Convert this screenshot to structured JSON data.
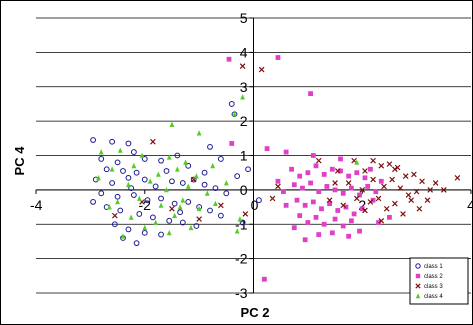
{
  "chart_data": {
    "type": "scatter",
    "xlabel": "PC 2",
    "ylabel": "PC 4",
    "xlim": [
      -4,
      4
    ],
    "ylim": [
      -3,
      5
    ],
    "x_ticks": [
      -4,
      -2,
      0,
      2,
      4
    ],
    "y_ticks": [
      -3,
      -2,
      -1,
      0,
      1,
      2,
      3,
      4,
      5
    ],
    "grid": "horizontal",
    "legend_position": "bottom-right",
    "series": [
      {
        "name": "class 1",
        "marker": "circle-open",
        "color": "#1a1a8c",
        "points": [
          [
            -2.95,
            1.45
          ],
          [
            -2.6,
            1.4
          ],
          [
            -2.3,
            1.35
          ],
          [
            -2.2,
            1.1
          ],
          [
            -2.8,
            0.9
          ],
          [
            -2.5,
            0.8
          ],
          [
            -2.0,
            0.9
          ],
          [
            -1.7,
            0.85
          ],
          [
            -1.4,
            1.0
          ],
          [
            -1.2,
            0.7
          ],
          [
            -0.8,
            1.25
          ],
          [
            -0.6,
            0.9
          ],
          [
            -0.9,
            0.5
          ],
          [
            -0.3,
            0.4
          ],
          [
            -2.7,
            0.6
          ],
          [
            -2.4,
            0.55
          ],
          [
            -2.15,
            0.5
          ],
          [
            -2.9,
            0.3
          ],
          [
            -2.6,
            0.2
          ],
          [
            -2.3,
            0.35
          ],
          [
            -2.0,
            0.3
          ],
          [
            -1.8,
            0.1
          ],
          [
            -1.5,
            0.25
          ],
          [
            -1.3,
            0.2
          ],
          [
            -1.1,
            0.3
          ],
          [
            -0.9,
            0.15
          ],
          [
            -0.7,
            0.05
          ],
          [
            -0.5,
            -0.1
          ],
          [
            -2.8,
            -0.1
          ],
          [
            -2.5,
            -0.2
          ],
          [
            -2.2,
            -0.15
          ],
          [
            -1.95,
            -0.3
          ],
          [
            -1.7,
            -0.25
          ],
          [
            -1.45,
            -0.4
          ],
          [
            -1.2,
            -0.35
          ],
          [
            -1.0,
            -0.5
          ],
          [
            -0.8,
            -0.6
          ],
          [
            -0.6,
            -0.75
          ],
          [
            -2.7,
            -0.5
          ],
          [
            -2.45,
            -0.6
          ],
          [
            -2.1,
            -0.7
          ],
          [
            -1.85,
            -0.8
          ],
          [
            -1.55,
            -0.9
          ],
          [
            -1.3,
            -0.95
          ],
          [
            -1.05,
            -1.05
          ],
          [
            -2.55,
            -1.0
          ],
          [
            -2.3,
            -1.15
          ],
          [
            -2.0,
            -1.25
          ],
          [
            -1.7,
            -1.3
          ],
          [
            -2.4,
            -1.4
          ],
          [
            -2.15,
            -1.55
          ],
          [
            -0.4,
            2.5
          ],
          [
            -0.35,
            2.2
          ],
          [
            -0.1,
            0.6
          ],
          [
            0.1,
            -0.3
          ],
          [
            -0.2,
            -0.95
          ],
          [
            -1.6,
            0.55
          ],
          [
            -2.25,
            0.05
          ],
          [
            -1.35,
            -0.65
          ],
          [
            -2.95,
            -0.35
          ]
        ]
      },
      {
        "name": "class 2",
        "marker": "square",
        "color": "#e040c8",
        "points": [
          [
            -0.45,
            3.8
          ],
          [
            0.45,
            3.85
          ],
          [
            0.2,
            -2.6
          ],
          [
            1.05,
            2.8
          ],
          [
            0.25,
            1.2
          ],
          [
            -0.4,
            1.35
          ],
          [
            0.6,
            1.1
          ],
          [
            0.7,
            0.6
          ],
          [
            0.85,
            0.4
          ],
          [
            1.0,
            0.5
          ],
          [
            1.15,
            0.7
          ],
          [
            1.3,
            0.45
          ],
          [
            1.45,
            0.6
          ],
          [
            1.6,
            0.55
          ],
          [
            1.75,
            0.4
          ],
          [
            1.9,
            0.5
          ],
          [
            2.05,
            0.35
          ],
          [
            0.75,
            0.15
          ],
          [
            0.9,
            0.05
          ],
          [
            1.05,
            0.2
          ],
          [
            1.2,
            -0.05
          ],
          [
            1.35,
            0.1
          ],
          [
            1.5,
            0.0
          ],
          [
            1.65,
            -0.1
          ],
          [
            1.8,
            0.05
          ],
          [
            1.95,
            -0.15
          ],
          [
            2.1,
            0.1
          ],
          [
            2.25,
            -0.05
          ],
          [
            0.8,
            -0.3
          ],
          [
            0.95,
            -0.45
          ],
          [
            1.1,
            -0.35
          ],
          [
            1.25,
            -0.55
          ],
          [
            1.4,
            -0.4
          ],
          [
            1.55,
            -0.6
          ],
          [
            1.7,
            -0.5
          ],
          [
            1.85,
            -0.7
          ],
          [
            2.0,
            -0.55
          ],
          [
            0.85,
            -0.75
          ],
          [
            1.0,
            -0.95
          ],
          [
            1.15,
            -0.8
          ],
          [
            1.3,
            -1.0
          ],
          [
            1.5,
            -0.85
          ],
          [
            1.65,
            -1.05
          ],
          [
            1.8,
            -0.9
          ],
          [
            0.75,
            -1.1
          ],
          [
            1.2,
            -1.3
          ],
          [
            1.45,
            -1.25
          ],
          [
            1.75,
            -1.35
          ],
          [
            2.2,
            -0.3
          ],
          [
            2.35,
            0.25
          ],
          [
            0.55,
            -0.05
          ],
          [
            0.6,
            -0.45
          ],
          [
            0.45,
            0.25
          ],
          [
            2.5,
            -0.8
          ],
          [
            2.3,
            -0.95
          ],
          [
            1.95,
            -1.2
          ],
          [
            1.1,
            1.0
          ],
          [
            1.6,
            0.9
          ],
          [
            0.95,
            -1.45
          ],
          [
            2.15,
            0.6
          ]
        ]
      },
      {
        "name": "class 3",
        "marker": "x",
        "color": "#7a1010",
        "points": [
          [
            -0.2,
            3.6
          ],
          [
            0.15,
            3.5
          ],
          [
            -1.85,
            1.4
          ],
          [
            -1.1,
            0.3
          ],
          [
            -2.55,
            -0.75
          ],
          [
            -2.05,
            -0.35
          ],
          [
            -1.5,
            -0.55
          ],
          [
            -1.0,
            -0.85
          ],
          [
            -0.6,
            -0.45
          ],
          [
            -0.15,
            -0.7
          ],
          [
            0.45,
            0.1
          ],
          [
            0.35,
            -0.25
          ],
          [
            1.2,
            0.85
          ],
          [
            1.55,
            0.55
          ],
          [
            1.85,
            0.85
          ],
          [
            2.05,
            0.55
          ],
          [
            2.2,
            0.85
          ],
          [
            2.35,
            0.7
          ],
          [
            2.5,
            0.75
          ],
          [
            2.65,
            0.65
          ],
          [
            2.8,
            0.4
          ],
          [
            2.95,
            0.45
          ],
          [
            3.1,
            0.25
          ],
          [
            3.25,
            0.0
          ],
          [
            3.5,
            0.0
          ],
          [
            3.75,
            0.35
          ],
          [
            2.2,
            0.3
          ],
          [
            2.4,
            0.1
          ],
          [
            2.55,
            0.3
          ],
          [
            2.7,
            0.05
          ],
          [
            2.85,
            -0.15
          ],
          [
            3.0,
            -0.05
          ],
          [
            2.15,
            -0.35
          ],
          [
            2.3,
            -0.25
          ],
          [
            2.45,
            -0.55
          ],
          [
            2.6,
            -0.4
          ],
          [
            2.75,
            -0.7
          ],
          [
            2.9,
            -0.3
          ],
          [
            3.05,
            -0.55
          ],
          [
            1.4,
            -0.3
          ],
          [
            1.65,
            -0.45
          ],
          [
            1.9,
            -0.25
          ],
          [
            2.0,
            0.0
          ],
          [
            1.75,
            0.2
          ],
          [
            3.2,
            -0.3
          ],
          [
            2.35,
            -0.9
          ],
          [
            2.05,
            -0.6
          ],
          [
            1.5,
            0.2
          ],
          [
            2.6,
            0.6
          ],
          [
            3.35,
            0.2
          ]
        ]
      },
      {
        "name": "class 4",
        "marker": "triangle",
        "color": "#55cc22",
        "points": [
          [
            -0.2,
            2.7
          ],
          [
            -0.35,
            2.2
          ],
          [
            -1.5,
            1.9
          ],
          [
            -1.0,
            1.65
          ],
          [
            -2.45,
            1.15
          ],
          [
            -2.05,
            1.0
          ],
          [
            -1.55,
            0.95
          ],
          [
            -1.25,
            0.8
          ],
          [
            -2.6,
            0.6
          ],
          [
            -2.2,
            0.7
          ],
          [
            -1.75,
            0.45
          ],
          [
            -1.4,
            0.6
          ],
          [
            -1.05,
            0.4
          ],
          [
            -0.75,
            0.7
          ],
          [
            -2.85,
            0.35
          ],
          [
            -2.3,
            0.15
          ],
          [
            -1.9,
            0.25
          ],
          [
            -1.6,
            0.0
          ],
          [
            -1.2,
            0.1
          ],
          [
            -0.85,
            -0.1
          ],
          [
            -2.5,
            -0.35
          ],
          [
            -2.1,
            -0.25
          ],
          [
            -1.7,
            -0.45
          ],
          [
            -1.3,
            -0.3
          ],
          [
            -1.0,
            -0.55
          ],
          [
            -0.7,
            -0.4
          ],
          [
            -2.25,
            -0.8
          ],
          [
            -1.8,
            -0.95
          ],
          [
            -1.45,
            -0.75
          ],
          [
            -1.15,
            -1.1
          ],
          [
            -2.4,
            -1.35
          ],
          [
            -2.0,
            -1.1
          ],
          [
            -1.55,
            -1.25
          ],
          [
            -0.25,
            -0.85
          ],
          [
            -0.5,
            0.2
          ],
          [
            -2.8,
            1.1
          ],
          [
            -0.3,
            -1.2
          ],
          [
            -1.35,
            -0.5
          ],
          [
            -2.65,
            -0.5
          ],
          [
            1.9,
            0.8
          ]
        ]
      }
    ]
  }
}
